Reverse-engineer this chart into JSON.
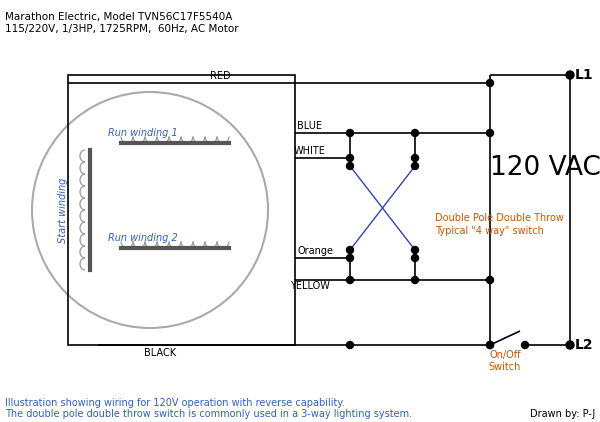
{
  "title_line1": "Marathon Electric, Model TVN56C17F5540A",
  "title_line2": "115/220V, 1/3HP, 1725RPM,  60Hz, AC Motor",
  "vac_label": "120 VAC",
  "L1_label": "L1",
  "L2_label": "L2",
  "dpdt_label1": "Double Pole Double Throw",
  "dpdt_label2": "Typical \"4 way\" switch",
  "onoff_label1": "On/Off",
  "onoff_label2": "Switch",
  "footer_line1": "Illustration showing wiring for 120V operation with reverse capability.",
  "footer_line2": "The double pole double throw switch is commonly used in a 3-way lighting system.",
  "drawn_by": "Drawn by: P-J",
  "run_winding1": "Run winding 1",
  "run_winding2": "Run winding 2",
  "start_winding": "Start winding",
  "wire_RED": "RED",
  "wire_BLUE": "BLUE",
  "wire_WHITE": "WHITE",
  "wire_ORANGE": "Orange",
  "wire_YELLOW": "YELLOW",
  "wire_BLACK": "BLACK",
  "bg_color": "#ffffff",
  "text_color_black": "#000000",
  "text_color_blue": "#3060c0",
  "text_color_orange": "#cc5500",
  "text_color_footer": "#3060c0",
  "line_color": "#000000",
  "box_color": "#000000",
  "coil_color": "#999999",
  "switch_color": "#3344aa"
}
